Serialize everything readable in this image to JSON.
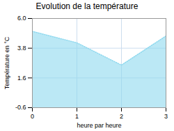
{
  "chart_data": {
    "type": "area",
    "title": "Evolution de la température",
    "xlabel": "heure par heure",
    "ylabel": "Température en °C",
    "x": [
      0,
      1,
      2,
      3
    ],
    "values": [
      5.05,
      4.2,
      2.55,
      4.7
    ],
    "color": "#8dd8ee",
    "line_style": "dotted",
    "xlim": [
      0,
      3
    ],
    "ylim": [
      -0.6,
      6.0
    ],
    "xticks": [
      0,
      1,
      2,
      3
    ],
    "yticks": [
      -0.6,
      1.6,
      3.8,
      {
        "value": 6.0,
        "label": "6.0"
      }
    ],
    "grid": true
  }
}
